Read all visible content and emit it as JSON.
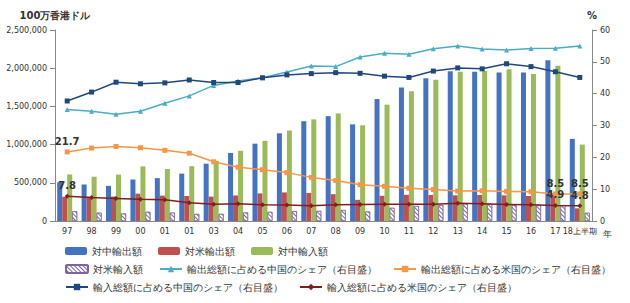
{
  "chart_data": {
    "type": "bar",
    "y_label": "100万香港ドル",
    "y2_label": "%",
    "x_label": "年",
    "categories": [
      "97",
      "98",
      "99",
      "00",
      "01",
      "01",
      "03",
      "04",
      "05",
      "06",
      "07",
      "08",
      "09",
      "10",
      "11",
      "12",
      "13",
      "14",
      "15",
      "16",
      "17",
      "18上半期"
    ],
    "ylim": [
      0,
      2500000
    ],
    "yticks": [
      0,
      {
        "value": 500000,
        "label": "500,000"
      },
      {
        "value": 1000000,
        "label": "1,000,000"
      },
      {
        "value": 1500000,
        "label": "1,500,000"
      },
      {
        "value": 2000000,
        "label": "2,000,000"
      },
      {
        "value": 2500000,
        "label": "2,500,000"
      }
    ],
    "y2lim": [
      0,
      60
    ],
    "y2ticks": [
      0,
      10,
      20,
      30,
      40,
      50,
      60
    ],
    "grid": false,
    "legend": "bottom",
    "series": [
      {
        "name": "対中輸出額",
        "type": "bar",
        "color": "#4472c4",
        "values": [
          508000,
          478000,
          460000,
          543000,
          561000,
          620000,
          750000,
          891000,
          1012000,
          1148000,
          1306000,
          1372000,
          1265000,
          1596000,
          1749000,
          1867000,
          1961000,
          1955000,
          1945000,
          1944000,
          2103000,
          1075000
        ]
      },
      {
        "name": "対米輸出額",
        "type": "bar",
        "color": "#c0504d",
        "values": [
          317000,
          316000,
          320000,
          358000,
          332000,
          327000,
          319000,
          334000,
          361000,
          374000,
          368000,
          351000,
          277000,
          330000,
          343000,
          341000,
          336000,
          341000,
          336000,
          328000,
          330000,
          166000
        ]
      },
      {
        "name": "対中輸入額",
        "type": "bar",
        "color": "#9bbb59",
        "values": [
          609000,
          580000,
          607000,
          715000,
          681000,
          717000,
          789000,
          919000,
          1049000,
          1184000,
          1330000,
          1408000,
          1253000,
          1523000,
          1697000,
          1849000,
          1953000,
          1963000,
          1985000,
          1925000,
          2031000,
          1000000
        ]
      },
      {
        "name": "対米輸入額",
        "type": "bar",
        "color": "#8064a2",
        "line_style": "hatched",
        "values": [
          127000,
          109000,
          99000,
          120000,
          110000,
          92000,
          93000,
          112000,
          119000,
          129000,
          132000,
          144000,
          124000,
          172000,
          197000,
          207000,
          226000,
          222000,
          210000,
          205000,
          208000,
          107000
        ]
      },
      {
        "name": "輸出総額に占める中国のシェア（右目盛）",
        "type": "line",
        "axis": "y2",
        "color": "#4bacc6",
        "marker": "triangle",
        "line_style": "solid",
        "values": [
          35,
          34.5,
          33.5,
          34.5,
          37,
          39.3,
          42.6,
          44,
          45,
          46.8,
          48.7,
          48.5,
          51.5,
          52.7,
          52.4,
          54.1,
          55,
          54,
          53.7,
          54.2,
          54.3,
          55
        ]
      },
      {
        "name": "輸出総額に占める米国のシェア（右目盛）",
        "type": "line",
        "axis": "y2",
        "color": "#f79646",
        "marker": "square",
        "line_style": "solid",
        "values": [
          21.7,
          22.9,
          23.4,
          23,
          22.2,
          21.3,
          18.6,
          16.9,
          16.1,
          15.2,
          13.7,
          12.7,
          11.4,
          10.9,
          10.3,
          9.9,
          9.4,
          9.5,
          9.3,
          9.2,
          8.5,
          8.5
        ],
        "value_labels": [
          "21.7",
          null,
          null,
          null,
          null,
          null,
          null,
          null,
          null,
          null,
          null,
          null,
          null,
          null,
          null,
          null,
          null,
          null,
          null,
          null,
          "8.5",
          "8.5"
        ]
      },
      {
        "name": "輸入総額に占める中国のシェア（右目盛）",
        "type": "line",
        "axis": "y2",
        "color": "#1f497d",
        "marker": "square",
        "line_style": "solid",
        "values": [
          37.7,
          40.5,
          43.6,
          43.1,
          43.4,
          44.3,
          43.5,
          43.5,
          45,
          45.9,
          46.3,
          46.6,
          46.4,
          45.5,
          45.1,
          47.1,
          48.1,
          47.8,
          49.4,
          48.5,
          46.9,
          45.1
        ]
      },
      {
        "name": "輸入総額に占める米国のシェア（右目盛）",
        "type": "line",
        "axis": "y2",
        "color": "#7f1f1f",
        "marker": "diamond",
        "line_style": "solid",
        "values": [
          7.8,
          7.4,
          7.1,
          6.8,
          6.7,
          5.7,
          5.3,
          5.4,
          5.1,
          5.0,
          4.8,
          5.1,
          5.2,
          5.3,
          5.3,
          5.3,
          5.6,
          5.4,
          5.2,
          5.1,
          4.9,
          4.8
        ],
        "value_labels": [
          "7.8",
          null,
          null,
          null,
          null,
          null,
          null,
          null,
          null,
          null,
          null,
          null,
          null,
          null,
          null,
          null,
          null,
          null,
          null,
          null,
          "4.9",
          "4.8"
        ]
      }
    ]
  }
}
